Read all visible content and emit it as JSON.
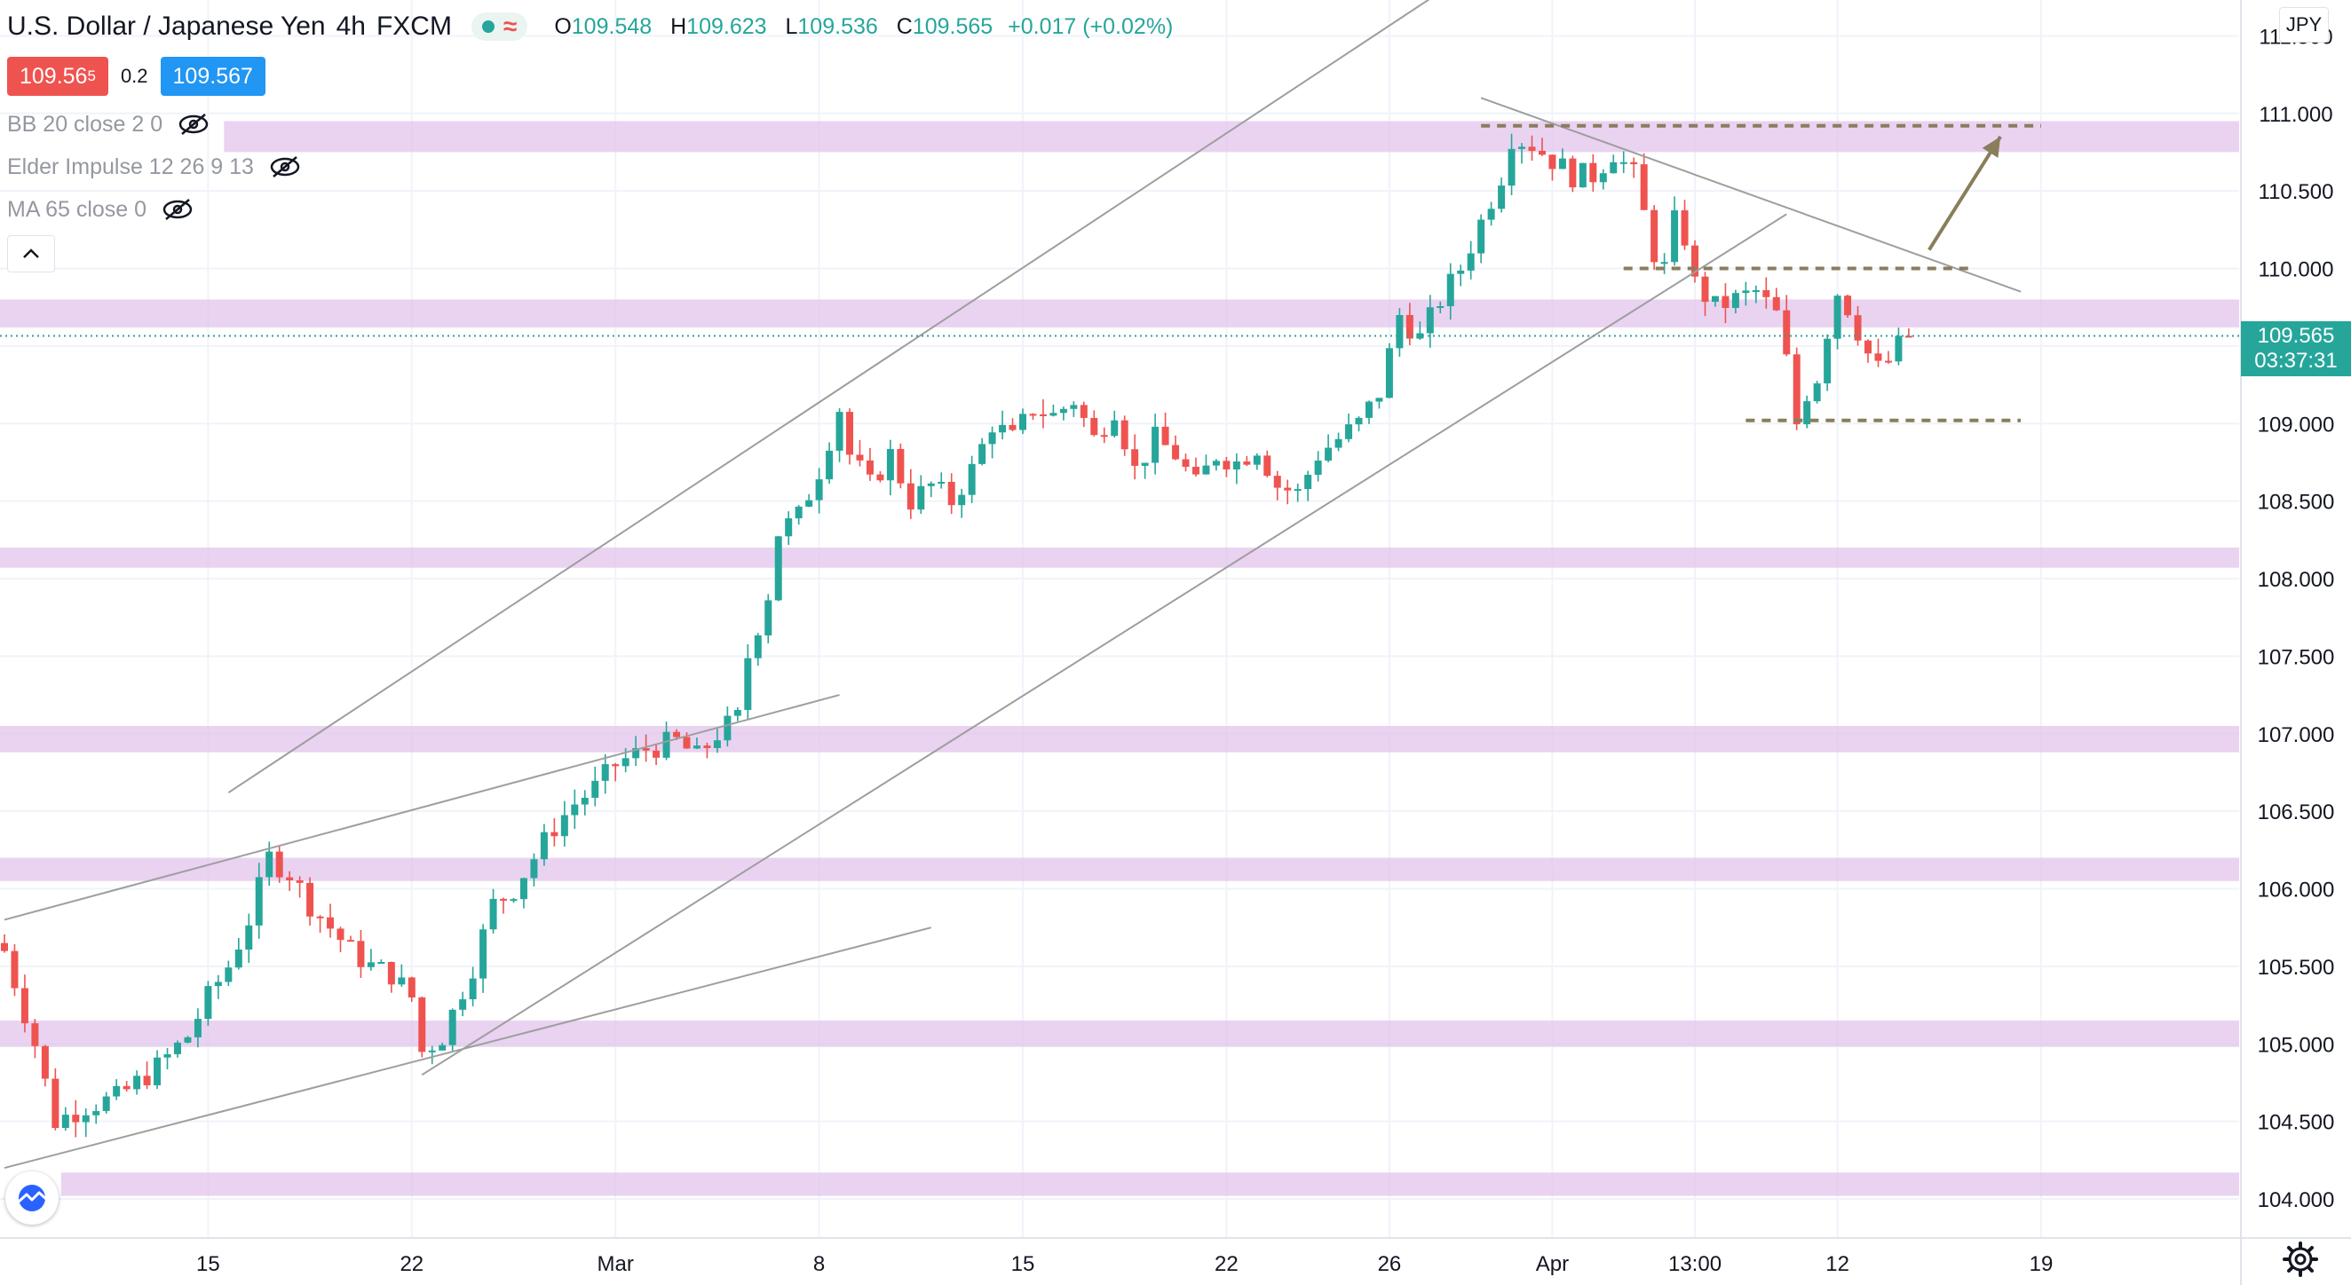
{
  "header": {
    "symbol_name": "U.S. Dollar / Japanese Yen",
    "interval": "4h",
    "source": "FXCM",
    "status_wave": "≈",
    "ohlc": {
      "open_label": "O",
      "open": "109.548",
      "high_label": "H",
      "high": "109.623",
      "low_label": "L",
      "low": "109.536",
      "close_label": "C",
      "close": "109.565",
      "change": "+0.017 (+0.02%)"
    }
  },
  "quote": {
    "sell_main": "109.56",
    "sell_pip": "5",
    "spread": "0.2",
    "buy": "109.567"
  },
  "indicators": [
    {
      "label": "BB 20 close 2 0",
      "icon": "eye-crossed-icon"
    },
    {
      "label": "Elder Impulse 12 26 9 13",
      "icon": "eye-crossed-icon"
    },
    {
      "label": "MA 65 close 0",
      "icon": "eye-crossed-icon"
    }
  ],
  "currency_button": "JPY",
  "last_price": {
    "price": "109.565",
    "countdown": "03:37:31"
  },
  "colors": {
    "up": "#26a69a",
    "down": "#ef5350",
    "zone": "#e1c4ec",
    "drawing": "#8a7d5c",
    "trendline": "#9e9e9e"
  },
  "chart_data": {
    "type": "candlestick",
    "symbol": "USDJPY",
    "timeframe": "4h",
    "ylim": [
      103.8,
      111.6
    ],
    "y_ticks": [
      "104.000",
      "104.500",
      "105.000",
      "105.500",
      "106.000",
      "106.500",
      "107.000",
      "107.500",
      "108.000",
      "108.500",
      "109.000",
      "109.500",
      "110.000",
      "110.500",
      "111.000",
      "111.500"
    ],
    "x_tick_labels": [
      "15",
      "22",
      "Mar",
      "8",
      "15",
      "22",
      "26",
      "Apr",
      "13:00",
      "12",
      "19"
    ],
    "x_tick_bars": [
      20,
      40,
      60,
      80,
      100,
      120,
      136,
      152,
      166,
      180,
      200
    ],
    "grid": true,
    "bar_count": 208,
    "close_path": [
      [
        0,
        105.6
      ],
      [
        3,
        105.0
      ],
      [
        5,
        104.5
      ],
      [
        8,
        104.6
      ],
      [
        11,
        104.65
      ],
      [
        15,
        104.85
      ],
      [
        18,
        105.05
      ],
      [
        20,
        105.3
      ],
      [
        22,
        105.5
      ],
      [
        24,
        105.8
      ],
      [
        26,
        106.2
      ],
      [
        28,
        106.1
      ],
      [
        30,
        105.9
      ],
      [
        32,
        105.75
      ],
      [
        34,
        105.6
      ],
      [
        36,
        105.5
      ],
      [
        38,
        105.45
      ],
      [
        40,
        105.3
      ],
      [
        41,
        104.95
      ],
      [
        43,
        105.05
      ],
      [
        46,
        105.5
      ],
      [
        48,
        105.9
      ],
      [
        50,
        106.0
      ],
      [
        52,
        106.2
      ],
      [
        54,
        106.4
      ],
      [
        56,
        106.55
      ],
      [
        58,
        106.65
      ],
      [
        60,
        106.8
      ],
      [
        63,
        106.9
      ],
      [
        66,
        106.95
      ],
      [
        68,
        106.85
      ],
      [
        70,
        107.0
      ],
      [
        72,
        107.1
      ],
      [
        73,
        107.5
      ],
      [
        75,
        107.9
      ],
      [
        76,
        108.3
      ],
      [
        78,
        108.4
      ],
      [
        80,
        108.7
      ],
      [
        82,
        109.1
      ],
      [
        83,
        108.8
      ],
      [
        85,
        108.6
      ],
      [
        87,
        108.8
      ],
      [
        89,
        108.5
      ],
      [
        91,
        108.6
      ],
      [
        93,
        108.5
      ],
      [
        95,
        108.7
      ],
      [
        97,
        109.0
      ],
      [
        99,
        108.9
      ],
      [
        101,
        109.1
      ],
      [
        103,
        109.05
      ],
      [
        105,
        109.15
      ],
      [
        107,
        108.9
      ],
      [
        109,
        109.1
      ],
      [
        111,
        108.7
      ],
      [
        113,
        108.9
      ],
      [
        115,
        108.8
      ],
      [
        117,
        108.6
      ],
      [
        119,
        108.8
      ],
      [
        121,
        108.75
      ],
      [
        123,
        108.85
      ],
      [
        125,
        108.6
      ],
      [
        127,
        108.55
      ],
      [
        129,
        108.8
      ],
      [
        131,
        108.9
      ],
      [
        133,
        109.0
      ],
      [
        135,
        109.2
      ],
      [
        137,
        109.7
      ],
      [
        139,
        109.55
      ],
      [
        141,
        109.8
      ],
      [
        143,
        110.0
      ],
      [
        145,
        110.3
      ],
      [
        147,
        110.6
      ],
      [
        148,
        110.85
      ],
      [
        150,
        110.8
      ],
      [
        152,
        110.7
      ],
      [
        154,
        110.6
      ],
      [
        156,
        110.6
      ],
      [
        158,
        110.75
      ],
      [
        160,
        110.6
      ],
      [
        161,
        110.35
      ],
      [
        162,
        110.1
      ],
      [
        163,
        110.0
      ],
      [
        164,
        110.3
      ],
      [
        165,
        110.2
      ],
      [
        166,
        109.9
      ],
      [
        168,
        109.75
      ],
      [
        170,
        109.8
      ],
      [
        172,
        109.85
      ],
      [
        174,
        109.7
      ],
      [
        175,
        109.4
      ],
      [
        176,
        109.0
      ],
      [
        177,
        109.2
      ],
      [
        178,
        109.3
      ],
      [
        179,
        109.6
      ],
      [
        180,
        109.85
      ],
      [
        181,
        109.75
      ],
      [
        182,
        109.6
      ],
      [
        183,
        109.45
      ],
      [
        184,
        109.35
      ],
      [
        185,
        109.4
      ],
      [
        186,
        109.5
      ],
      [
        187,
        109.565
      ]
    ],
    "support_resistance_zones": [
      {
        "from": 110.75,
        "to": 110.95,
        "start_bar": 22
      },
      {
        "from": 109.62,
        "to": 109.8,
        "start_bar": 0
      },
      {
        "from": 108.07,
        "to": 108.2,
        "start_bar": 0
      },
      {
        "from": 106.88,
        "to": 107.05,
        "start_bar": 0
      },
      {
        "from": 106.05,
        "to": 106.2,
        "start_bar": 0
      },
      {
        "from": 104.98,
        "to": 105.15,
        "start_bar": 0
      },
      {
        "from": 104.02,
        "to": 104.17,
        "start_bar": 6
      }
    ],
    "trend_lines": [
      {
        "from": [
          22,
          106.62
        ],
        "to": [
          146,
          112.0
        ]
      },
      {
        "from": [
          0,
          104.2
        ],
        "to": [
          91,
          105.75
        ]
      },
      {
        "from": [
          0,
          105.8
        ],
        "to": [
          82,
          107.25
        ]
      },
      {
        "from": [
          41,
          104.8
        ],
        "to": [
          175,
          110.35
        ]
      },
      {
        "from": [
          145,
          111.1
        ],
        "to": [
          198,
          109.85
        ]
      }
    ],
    "dashed_levels": [
      {
        "price": 110.92,
        "from_bar": 145,
        "to_bar": 200
      },
      {
        "price": 110.0,
        "from_bar": 159,
        "to_bar": 193
      },
      {
        "price": 109.02,
        "from_bar": 171,
        "to_bar": 198
      }
    ],
    "arrow": {
      "from": [
        189,
        110.12
      ],
      "to": [
        196,
        110.85
      ]
    },
    "last_price_line": 109.565
  }
}
